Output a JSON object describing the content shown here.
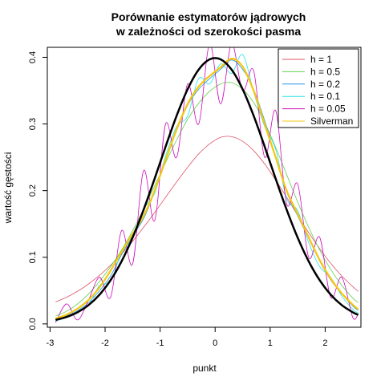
{
  "chart_data": {
    "type": "line",
    "title": "Porównanie estymatorów jądrowych",
    "subtitle": "w zależności od szerokości pasma",
    "xlabel": "punkt",
    "ylabel": "wartość gęstości",
    "xlim": [
      -3.05,
      2.65
    ],
    "ylim": [
      -0.005,
      0.415
    ],
    "xticks": [
      "-3",
      "-2",
      "-1",
      "0",
      "1",
      "2"
    ],
    "yticks": [
      "0.0",
      "0.1",
      "0.2",
      "0.3",
      "0.4"
    ],
    "grid": false,
    "legend_position": "top-right",
    "x": [
      -2.9,
      -2.7,
      -2.5,
      -2.3,
      -2.1,
      -1.9,
      -1.7,
      -1.5,
      -1.3,
      -1.1,
      -0.9,
      -0.7,
      -0.5,
      -0.3,
      -0.1,
      0.1,
      0.3,
      0.5,
      0.7,
      0.9,
      1.1,
      1.3,
      1.5,
      1.7,
      1.9,
      2.1,
      2.3,
      2.5,
      2.6
    ],
    "series": [
      {
        "name": "h = 1",
        "color": "#DF536B",
        "width": 0.8,
        "values": [
          0.033,
          0.04,
          0.049,
          0.06,
          0.073,
          0.088,
          0.105,
          0.124,
          0.145,
          0.167,
          0.19,
          0.213,
          0.235,
          0.255,
          0.27,
          0.28,
          0.281,
          0.274,
          0.26,
          0.24,
          0.216,
          0.19,
          0.163,
          0.137,
          0.113,
          0.091,
          0.072,
          0.056,
          0.049
        ]
      },
      {
        "name": "h = 0.5",
        "color": "#61D04F",
        "width": 0.8,
        "values": [
          0.012,
          0.019,
          0.03,
          0.045,
          0.064,
          0.086,
          0.111,
          0.14,
          0.172,
          0.207,
          0.242,
          0.276,
          0.307,
          0.331,
          0.349,
          0.36,
          0.362,
          0.352,
          0.332,
          0.302,
          0.265,
          0.224,
          0.183,
          0.145,
          0.111,
          0.082,
          0.058,
          0.039,
          0.032
        ]
      },
      {
        "name": "h = 0.2",
        "color": "#2297E6",
        "width": 0.8,
        "values": [
          0.006,
          0.012,
          0.02,
          0.032,
          0.05,
          0.072,
          0.104,
          0.132,
          0.158,
          0.198,
          0.245,
          0.29,
          0.328,
          0.352,
          0.368,
          0.382,
          0.396,
          0.382,
          0.352,
          0.305,
          0.25,
          0.198,
          0.162,
          0.128,
          0.094,
          0.066,
          0.045,
          0.027,
          0.02
        ]
      },
      {
        "name": "h = 0.1",
        "color": "#28E2E5",
        "width": 0.8,
        "values": [
          0.004,
          0.01,
          0.018,
          0.028,
          0.058,
          0.064,
          0.108,
          0.128,
          0.172,
          0.196,
          0.252,
          0.296,
          0.312,
          0.368,
          0.36,
          0.39,
          0.376,
          0.404,
          0.348,
          0.296,
          0.262,
          0.188,
          0.17,
          0.122,
          0.086,
          0.07,
          0.042,
          0.022,
          0.016
        ]
      },
      {
        "name": "h = 0.05",
        "color": "#CD0BBC",
        "width": 0.8,
        "values": [
          0.002,
          0.03,
          0.006,
          0.036,
          0.07,
          0.04,
          0.14,
          0.09,
          0.23,
          0.155,
          0.3,
          0.25,
          0.36,
          0.3,
          0.42,
          0.33,
          0.42,
          0.35,
          0.38,
          0.25,
          0.32,
          0.18,
          0.21,
          0.1,
          0.13,
          0.04,
          0.07,
          0.01,
          0.015
        ]
      },
      {
        "name": "Silverman",
        "color": "#F5C710",
        "width": 2.2,
        "values": [
          0.008,
          0.014,
          0.023,
          0.036,
          0.055,
          0.08,
          0.108,
          0.135,
          0.162,
          0.2,
          0.246,
          0.292,
          0.33,
          0.356,
          0.372,
          0.385,
          0.398,
          0.386,
          0.35,
          0.3,
          0.25,
          0.2,
          0.165,
          0.13,
          0.096,
          0.068,
          0.046,
          0.029,
          0.022
        ]
      },
      {
        "name": "",
        "color": "#000000",
        "width": 2.5,
        "legend": false,
        "values": [
          0.006,
          0.0104,
          0.0175,
          0.0283,
          0.044,
          0.0656,
          0.094,
          0.1295,
          0.1714,
          0.2179,
          0.2661,
          0.3123,
          0.3521,
          0.3814,
          0.397,
          0.397,
          0.3814,
          0.3521,
          0.3123,
          0.2661,
          0.2179,
          0.1714,
          0.1295,
          0.094,
          0.0656,
          0.044,
          0.0283,
          0.0175,
          0.0136
        ]
      }
    ]
  }
}
